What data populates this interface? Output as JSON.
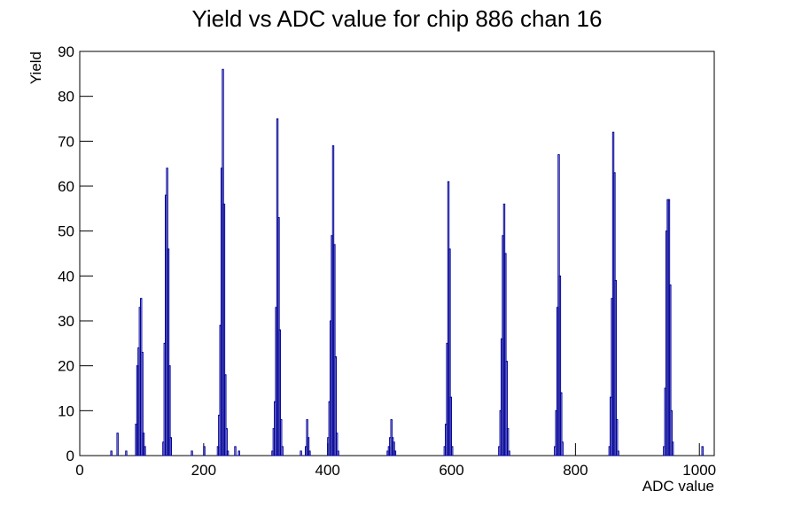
{
  "chart_data": {
    "type": "histogram",
    "title": "Yield vs ADC value for chip 886 chan 16",
    "x_label": "ADC value",
    "y_label": "Yield",
    "color": "#000099",
    "xlim": [
      0,
      1024
    ],
    "ylim": [
      0,
      90
    ],
    "xticks": [
      0,
      200,
      400,
      600,
      800,
      1000
    ],
    "yticks": [
      0,
      10,
      20,
      30,
      40,
      50,
      60,
      70,
      80,
      90
    ],
    "bins": [
      0,
      50,
      52,
      60,
      62,
      74,
      76,
      90,
      92,
      94,
      96,
      98,
      100,
      102,
      104,
      106,
      134,
      136,
      138,
      140,
      142,
      144,
      146,
      148,
      180,
      182,
      200,
      202,
      222,
      224,
      226,
      228,
      230,
      232,
      234,
      236,
      238,
      240,
      250,
      252,
      256,
      258,
      310,
      312,
      314,
      316,
      318,
      320,
      322,
      324,
      326,
      328,
      356,
      358,
      364,
      366,
      368,
      370,
      372,
      400,
      402,
      404,
      406,
      408,
      410,
      412,
      414,
      416,
      418,
      496,
      498,
      500,
      502,
      504,
      506,
      508,
      510,
      588,
      590,
      592,
      594,
      596,
      598,
      600,
      602,
      676,
      678,
      680,
      682,
      684,
      686,
      688,
      690,
      692,
      694,
      766,
      768,
      770,
      772,
      774,
      776,
      778,
      780,
      854,
      856,
      858,
      860,
      862,
      864,
      866,
      868,
      870,
      942,
      944,
      946,
      948,
      950,
      952,
      954,
      956,
      958,
      1004,
      1006,
      1024
    ],
    "counts": [
      0,
      1,
      0,
      5,
      0,
      1,
      0,
      7,
      20,
      24,
      33,
      35,
      23,
      5,
      2,
      0,
      3,
      25,
      58,
      64,
      46,
      20,
      4,
      0,
      1,
      0,
      2,
      0,
      2,
      9,
      29,
      64,
      86,
      56,
      18,
      6,
      1,
      0,
      2,
      0,
      1,
      0,
      1,
      6,
      12,
      33,
      75,
      53,
      28,
      8,
      2,
      0,
      1,
      0,
      2,
      8,
      4,
      1,
      0,
      4,
      12,
      30,
      49,
      69,
      47,
      22,
      5,
      1,
      0,
      1,
      2,
      4,
      8,
      4,
      3,
      1,
      0,
      2,
      7,
      25,
      61,
      46,
      13,
      2,
      0,
      2,
      10,
      26,
      49,
      56,
      45,
      21,
      6,
      1,
      0,
      2,
      10,
      33,
      67,
      40,
      14,
      3,
      0,
      2,
      13,
      35,
      72,
      63,
      39,
      8,
      1,
      0,
      2,
      15,
      50,
      57,
      57,
      38,
      10,
      3,
      0,
      2,
      0
    ]
  }
}
